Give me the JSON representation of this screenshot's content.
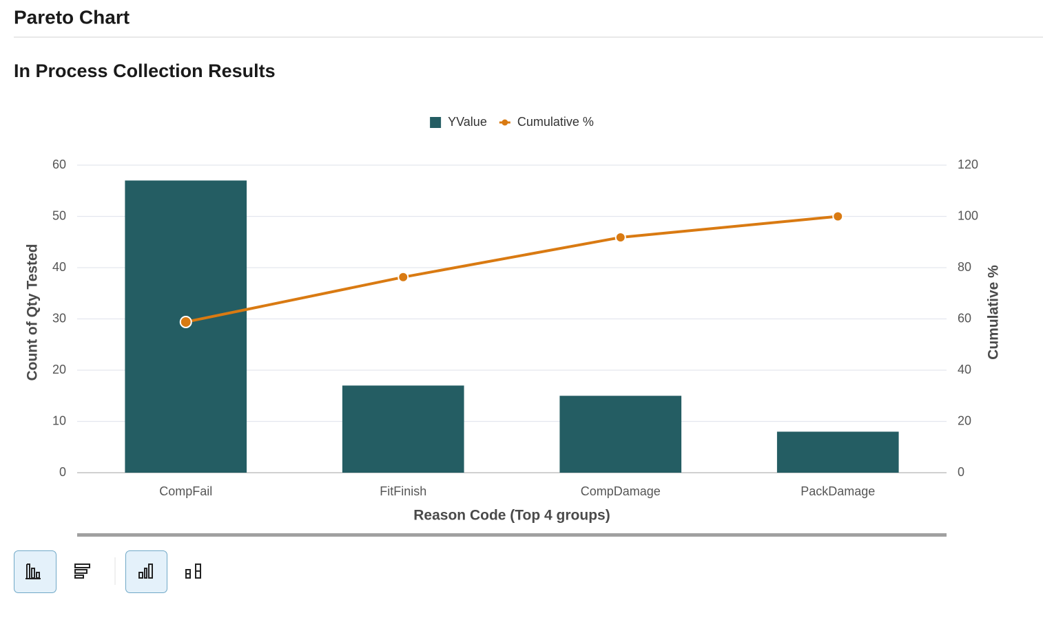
{
  "header": {
    "title": "Pareto Chart"
  },
  "chart_data": {
    "type": "bar",
    "title": "In Process Collection Results",
    "x_label": "Reason Code (Top 4 groups)",
    "y_label": "Count of Qty Tested",
    "y2_label": "Cumulative %",
    "categories": [
      "CompFail",
      "FitFinish",
      "CompDamage",
      "PackDamage"
    ],
    "series": [
      {
        "name": "YValue",
        "type": "bar",
        "color": "#245d63",
        "values": [
          57,
          17,
          15,
          8
        ]
      },
      {
        "name": "Cumulative %",
        "type": "line",
        "axis": "y2",
        "color": "#d97a12",
        "values": [
          58.8,
          76.3,
          91.8,
          100
        ]
      }
    ],
    "ylim": [
      0,
      60
    ],
    "yticks": [
      0,
      10,
      20,
      30,
      40,
      50,
      60
    ],
    "y2lim": [
      0,
      120
    ],
    "y2ticks": [
      0,
      20,
      40,
      60,
      80,
      100,
      120
    ],
    "grid": true,
    "legend": "top"
  }
}
